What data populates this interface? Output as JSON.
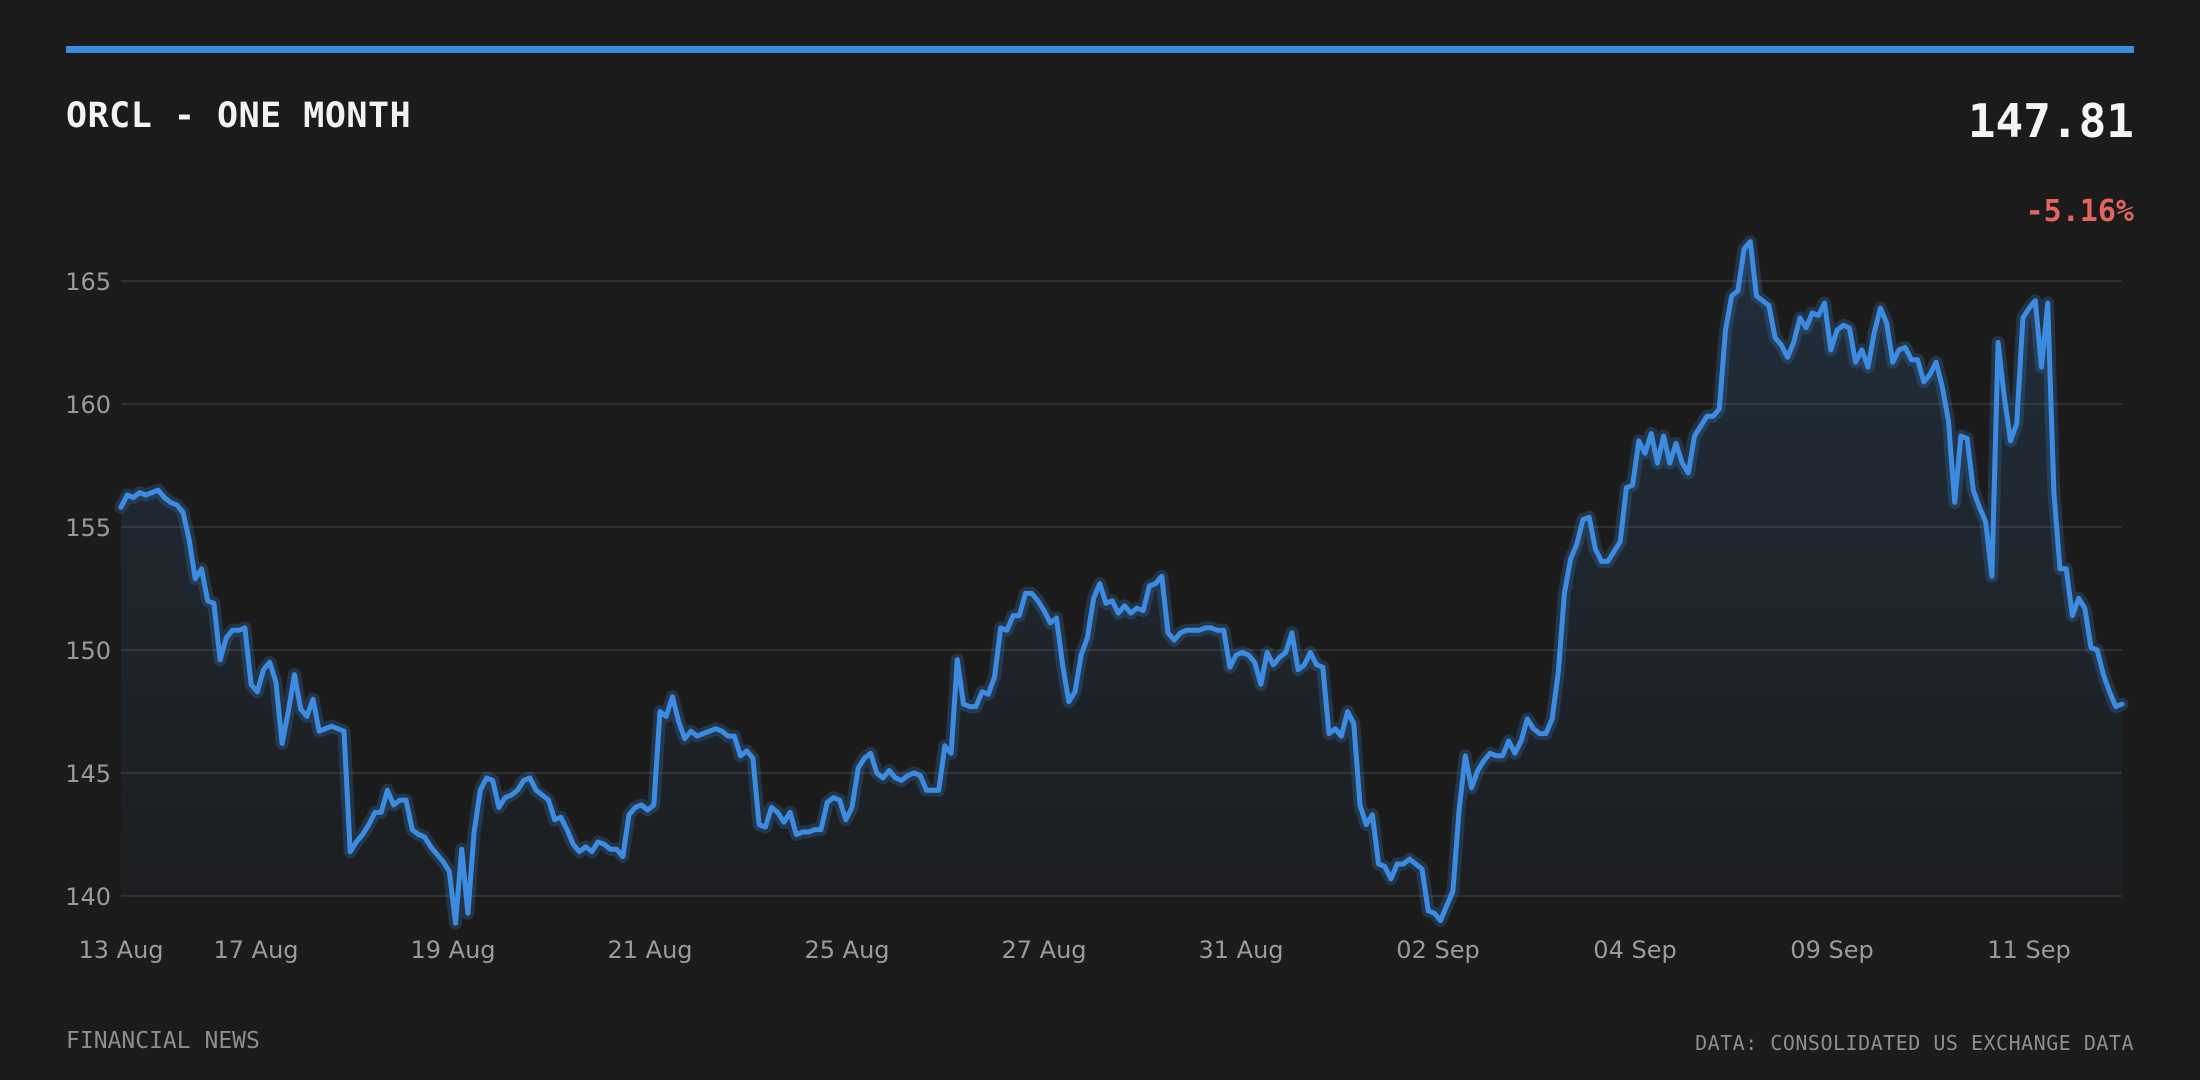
{
  "header": {
    "title": "ORCL - ONE MONTH",
    "price": "147.81",
    "change": "-5.16%"
  },
  "footer": {
    "source_left": "FINANCIAL NEWS",
    "source_right": "DATA: CONSOLIDATED US EXCHANGE DATA"
  },
  "colors": {
    "background": "#1b1b1b",
    "accent": "#3d8be0",
    "negative": "#e4645f",
    "grid": "#363636",
    "tick_text": "#9a9a9a"
  },
  "chart_data": {
    "type": "area",
    "title": "ORCL - ONE MONTH",
    "xlabel": "",
    "ylabel": "",
    "ylim": [
      139,
      167.5
    ],
    "yticks": [
      140,
      145,
      150,
      155,
      160,
      165
    ],
    "grid": true,
    "xticks": [
      "13 Aug",
      "17 Aug",
      "19 Aug",
      "21 Aug",
      "25 Aug",
      "27 Aug",
      "31 Aug",
      "02 Sep",
      "04 Sep",
      "09 Sep",
      "11 Sep"
    ],
    "series": [
      {
        "values": [
          155.8,
          156.3,
          156.2,
          156.4,
          156.3,
          156.4,
          156.5,
          156.2,
          156.0,
          155.9,
          155.6,
          154.5,
          152.9,
          153.3,
          152.0,
          151.9,
          149.6,
          150.5,
          150.8,
          150.8,
          150.9,
          148.6,
          148.3,
          149.2,
          149.5,
          148.7,
          146.2,
          147.5,
          149.0,
          147.6,
          147.3,
          148.0,
          146.7,
          146.8,
          146.9,
          146.8,
          146.7,
          141.8,
          142.2,
          142.5,
          142.9,
          143.4,
          143.4,
          144.3,
          143.7,
          143.9,
          143.9,
          142.7,
          142.5,
          142.4,
          142.0,
          141.7,
          141.4,
          141.0,
          138.9,
          141.9,
          139.3,
          142.6,
          144.3,
          144.8,
          144.7,
          143.6,
          144.0,
          144.1,
          144.3,
          144.7,
          144.8,
          144.3,
          144.1,
          143.9,
          143.1,
          143.2,
          142.7,
          142.1,
          141.8,
          142.0,
          141.8,
          142.2,
          142.1,
          141.9,
          141.9,
          141.6,
          143.3,
          143.6,
          143.7,
          143.5,
          143.7,
          147.5,
          147.3,
          148.1,
          147.1,
          146.4,
          146.7,
          146.5,
          146.6,
          146.7,
          146.8,
          146.7,
          146.5,
          146.5,
          145.7,
          145.9,
          145.6,
          142.9,
          142.8,
          143.6,
          143.4,
          143.0,
          143.4,
          142.5,
          142.6,
          142.6,
          142.7,
          142.7,
          143.8,
          144.0,
          143.9,
          143.1,
          143.6,
          145.2,
          145.6,
          145.8,
          145.0,
          144.8,
          145.1,
          144.8,
          144.7,
          144.9,
          145.0,
          144.9,
          144.3,
          144.3,
          144.3,
          146.1,
          145.8,
          149.6,
          147.8,
          147.7,
          147.7,
          148.3,
          148.2,
          148.9,
          150.9,
          150.8,
          151.4,
          151.4,
          152.3,
          152.3,
          152.0,
          151.6,
          151.1,
          151.3,
          149.4,
          147.9,
          148.3,
          149.8,
          150.5,
          152.1,
          152.7,
          151.9,
          152.0,
          151.5,
          151.8,
          151.5,
          151.7,
          151.6,
          152.6,
          152.7,
          153.0,
          150.7,
          150.4,
          150.7,
          150.8,
          150.8,
          150.8,
          150.9,
          150.9,
          150.8,
          150.8,
          149.3,
          149.8,
          149.9,
          149.8,
          149.5,
          148.6,
          149.9,
          149.4,
          149.7,
          149.9,
          150.7,
          149.2,
          149.4,
          149.9,
          149.4,
          149.3,
          146.6,
          146.8,
          146.5,
          147.5,
          147.0,
          143.7,
          142.9,
          143.3,
          141.3,
          141.2,
          140.7,
          141.3,
          141.3,
          141.5,
          141.3,
          141.1,
          139.4,
          139.3,
          139.0,
          139.6,
          140.2,
          143.5,
          145.7,
          144.4,
          145.1,
          145.5,
          145.8,
          145.7,
          145.7,
          146.3,
          145.8,
          146.3,
          147.2,
          146.8,
          146.6,
          146.6,
          147.2,
          149.1,
          152.3,
          153.7,
          154.3,
          155.3,
          155.4,
          154.1,
          153.6,
          153.6,
          154.0,
          154.4,
          156.6,
          156.7,
          158.5,
          158.0,
          158.8,
          157.6,
          158.7,
          157.6,
          158.4,
          157.6,
          157.2,
          158.7,
          159.1,
          159.5,
          159.5,
          159.8,
          163.0,
          164.4,
          164.6,
          166.3,
          166.6,
          164.4,
          164.2,
          164.0,
          162.7,
          162.4,
          161.9,
          162.5,
          163.5,
          163.1,
          163.7,
          163.6,
          164.1,
          162.2,
          163.0,
          163.2,
          163.1,
          161.7,
          162.2,
          161.5,
          162.9,
          163.9,
          163.3,
          161.7,
          162.2,
          162.3,
          161.8,
          161.8,
          160.9,
          161.2,
          161.7,
          160.7,
          159.3,
          156.0,
          158.7,
          158.6,
          156.5,
          155.8,
          155.2,
          153.0,
          162.5,
          160.3,
          158.5,
          159.2,
          163.5,
          163.9,
          164.2,
          161.5,
          164.1,
          156.4,
          153.3,
          153.3,
          151.4,
          152.1,
          151.7,
          150.1,
          150.0,
          149.0,
          148.3,
          147.7,
          147.8
        ]
      }
    ]
  }
}
